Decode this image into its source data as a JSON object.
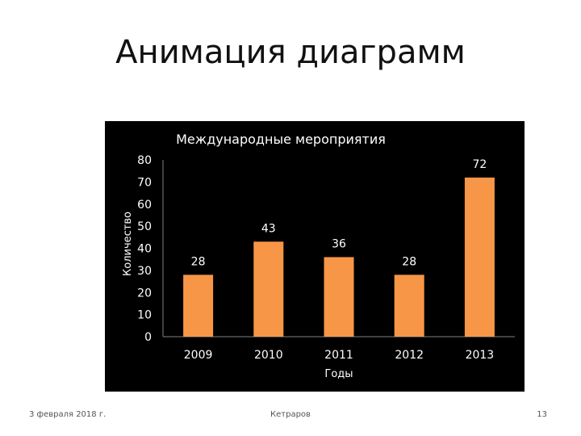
{
  "slide": {
    "title": "Анимация диаграмм",
    "footer_date": "3 февраля 2018 г.",
    "footer_author": "Кетраров",
    "page_number": "13"
  },
  "colors": {
    "chart_background": "#000000",
    "bar": "#F79646",
    "text": "#FFFFFF",
    "axis": "#7F7F7F"
  },
  "chart_data": {
    "type": "bar",
    "title": "Международные мероприятия",
    "xlabel": "Годы",
    "ylabel": "Количество",
    "categories": [
      "2009",
      "2010",
      "2011",
      "2012",
      "2013"
    ],
    "values": [
      28,
      43,
      36,
      28,
      72
    ],
    "ylim": [
      0,
      80
    ],
    "yticks": [
      "0",
      "10",
      "20",
      "30",
      "40",
      "50",
      "60",
      "70",
      "80"
    ],
    "data_labels": [
      "28",
      "43",
      "36",
      "28",
      "72"
    ],
    "grid": false,
    "legend": "none"
  }
}
